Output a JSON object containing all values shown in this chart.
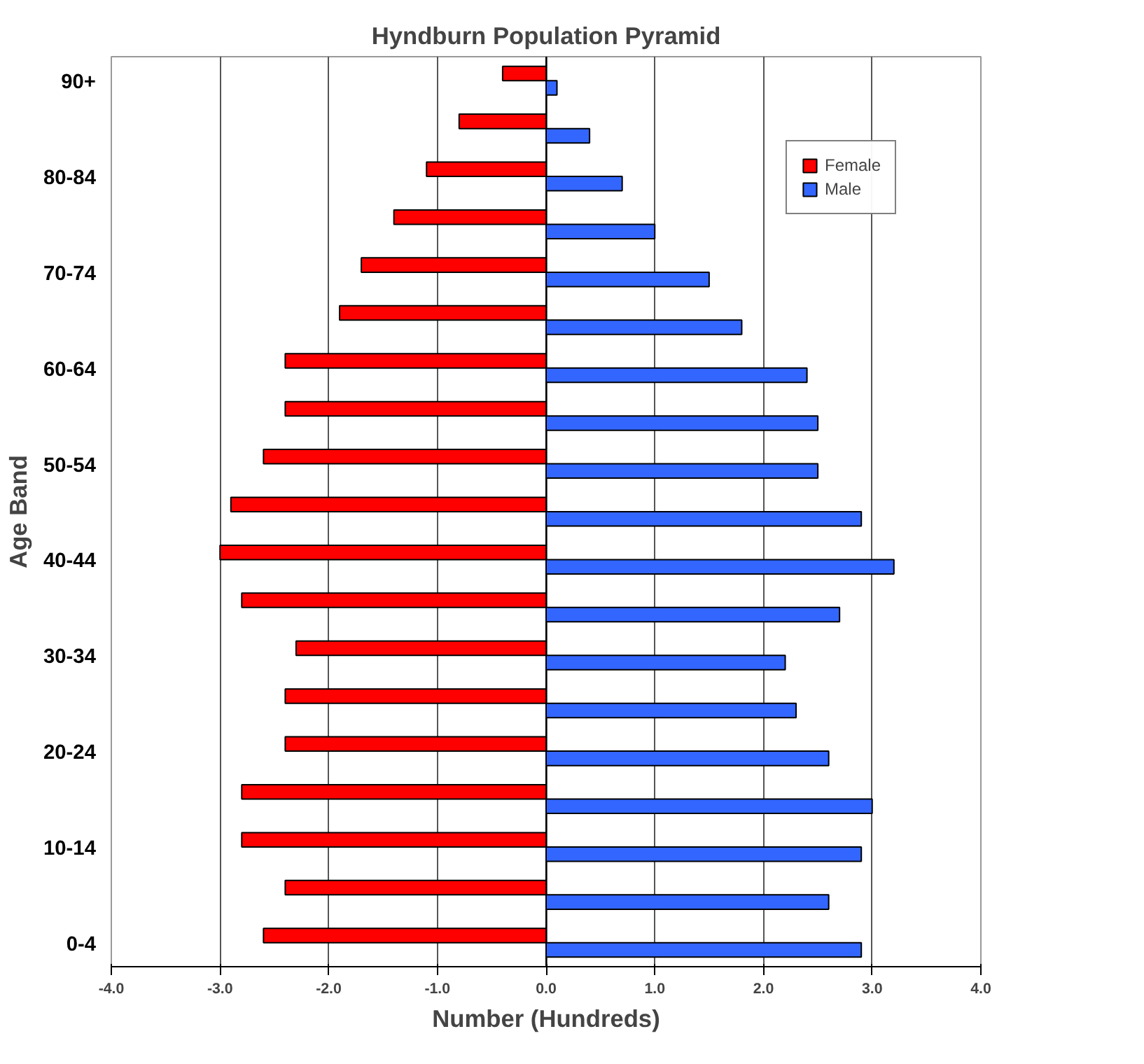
{
  "chart_data": {
    "type": "bar",
    "orientation": "horizontal",
    "title": "Hyndburn Population Pyramid",
    "xlabel": "Number (Hundreds)",
    "ylabel": "Age Band",
    "categories": [
      "90+",
      null,
      "80-84",
      null,
      "70-74",
      null,
      "60-64",
      null,
      "50-54",
      null,
      "40-44",
      null,
      "30-34",
      null,
      "20-24",
      null,
      "10-14",
      null,
      "0-4"
    ],
    "series": [
      {
        "name": "Female",
        "color": "#ff0000",
        "values": [
          -0.4,
          -0.8,
          -1.1,
          -1.4,
          -1.7,
          -1.9,
          -2.4,
          -2.4,
          -2.6,
          -2.9,
          -3.0,
          -2.8,
          -2.3,
          -2.4,
          -2.4,
          -2.8,
          -2.8,
          -2.4,
          -2.6
        ]
      },
      {
        "name": "Male",
        "color": "#3366ff",
        "values": [
          0.1,
          0.4,
          0.7,
          1.0,
          1.5,
          1.8,
          2.4,
          2.5,
          2.5,
          2.9,
          3.2,
          2.7,
          2.2,
          2.3,
          2.6,
          3.0,
          2.9,
          2.6,
          2.9
        ]
      }
    ],
    "xlim": [
      -4,
      4
    ],
    "xticks": [
      {
        "value": -4,
        "label": "-4.0"
      },
      {
        "value": -3,
        "label": "-3.0"
      },
      {
        "value": -2,
        "label": "-2.0"
      },
      {
        "value": -1,
        "label": "-1.0"
      },
      {
        "value": 0,
        "label": "0.0"
      },
      {
        "value": 1,
        "label": "1.0"
      },
      {
        "value": 2,
        "label": "2.0"
      },
      {
        "value": 3,
        "label": "3.0"
      },
      {
        "value": 4,
        "label": "4.0"
      }
    ],
    "grid": "x",
    "legend": "top right"
  }
}
